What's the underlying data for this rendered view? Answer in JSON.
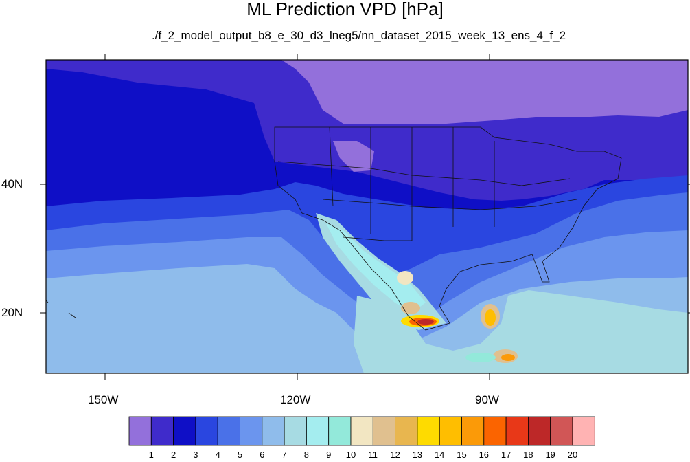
{
  "title": "ML Prediction VPD [hPa]",
  "subtitle": "./f_2_model_output_b8_e_30_d3_lneg5/nn_dataset_2015_week_13_ens_4_f_2",
  "lat_labels": [
    "40N",
    "20N"
  ],
  "lon_labels": [
    "150W",
    "120W",
    "90W"
  ],
  "colorbar": {
    "labels": [
      "1",
      "2",
      "3",
      "4",
      "5",
      "6",
      "7",
      "8",
      "9",
      "10",
      "11",
      "12",
      "13",
      "14",
      "15",
      "16",
      "17",
      "18",
      "19",
      "20"
    ],
    "colors": [
      "#9370db",
      "#3f2bcb",
      "#0f0fc6",
      "#2a46e0",
      "#4a71e8",
      "#6b95ee",
      "#8fbceb",
      "#a7dbe3",
      "#a4edef",
      "#93e9da",
      "#f2e6c2",
      "#e0c08f",
      "#e8b64f",
      "#fedb00",
      "#ffbe00",
      "#fb9a08",
      "#fb6400",
      "#e83818",
      "#bd2828",
      "#d15656",
      "#ffb3b3"
    ]
  }
}
